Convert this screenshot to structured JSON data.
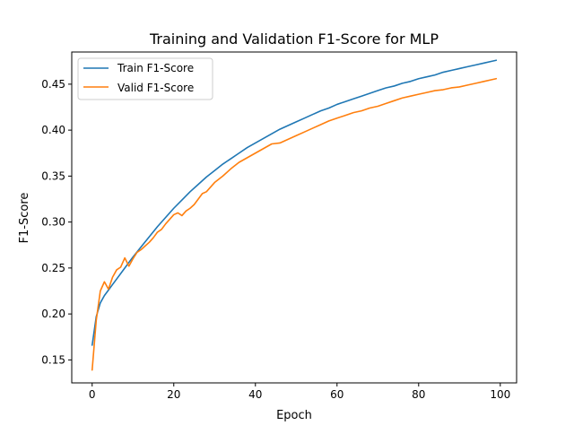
{
  "chart_data": {
    "type": "line",
    "title": "Training and Validation F1-Score for MLP",
    "xlabel": "Epoch",
    "ylabel": "F1-Score",
    "xlim": [
      -5,
      104
    ],
    "ylim": [
      0.125,
      0.485
    ],
    "xticks": [
      0,
      20,
      40,
      60,
      80,
      100
    ],
    "yticks": [
      0.15,
      0.2,
      0.25,
      0.3,
      0.35,
      0.4,
      0.45
    ],
    "xtick_labels": [
      "0",
      "20",
      "40",
      "60",
      "80",
      "100"
    ],
    "ytick_labels": [
      "0.15",
      "0.20",
      "0.25",
      "0.30",
      "0.35",
      "0.40",
      "0.45"
    ],
    "grid": false,
    "legend_position": "upper-left",
    "series": [
      {
        "name": "Train F1-Score",
        "color": "#1f77b4",
        "x": [
          0,
          1,
          2,
          3,
          4,
          5,
          6,
          8,
          10,
          12,
          14,
          16,
          18,
          20,
          22,
          24,
          26,
          28,
          30,
          32,
          34,
          36,
          38,
          40,
          42,
          44,
          46,
          48,
          50,
          52,
          54,
          56,
          58,
          60,
          62,
          64,
          66,
          68,
          70,
          72,
          74,
          76,
          78,
          80,
          82,
          84,
          86,
          88,
          90,
          92,
          94,
          96,
          98,
          99
        ],
        "y": [
          0.166,
          0.197,
          0.212,
          0.22,
          0.226,
          0.232,
          0.238,
          0.25,
          0.262,
          0.273,
          0.284,
          0.295,
          0.305,
          0.315,
          0.324,
          0.333,
          0.341,
          0.349,
          0.356,
          0.363,
          0.369,
          0.375,
          0.381,
          0.386,
          0.391,
          0.396,
          0.401,
          0.405,
          0.409,
          0.413,
          0.417,
          0.421,
          0.424,
          0.428,
          0.431,
          0.434,
          0.437,
          0.44,
          0.443,
          0.446,
          0.448,
          0.451,
          0.453,
          0.456,
          0.458,
          0.46,
          0.463,
          0.465,
          0.467,
          0.469,
          0.471,
          0.473,
          0.475,
          0.476
        ]
      },
      {
        "name": "Valid F1-Score",
        "color": "#ff7f0e",
        "x": [
          0,
          1,
          2,
          3,
          4,
          5,
          6,
          7,
          8,
          9,
          10,
          11,
          12,
          13,
          14,
          15,
          16,
          17,
          18,
          19,
          20,
          21,
          22,
          23,
          24,
          25,
          26,
          27,
          28,
          29,
          30,
          32,
          34,
          36,
          38,
          40,
          42,
          44,
          46,
          48,
          50,
          52,
          54,
          56,
          58,
          60,
          62,
          64,
          66,
          68,
          70,
          72,
          74,
          76,
          78,
          80,
          82,
          84,
          86,
          88,
          90,
          92,
          94,
          96,
          98,
          99
        ],
        "y": [
          0.139,
          0.193,
          0.225,
          0.235,
          0.227,
          0.24,
          0.248,
          0.251,
          0.261,
          0.252,
          0.26,
          0.267,
          0.27,
          0.274,
          0.278,
          0.283,
          0.289,
          0.292,
          0.298,
          0.303,
          0.308,
          0.31,
          0.307,
          0.312,
          0.315,
          0.319,
          0.325,
          0.331,
          0.333,
          0.338,
          0.343,
          0.35,
          0.358,
          0.365,
          0.37,
          0.375,
          0.38,
          0.385,
          0.386,
          0.39,
          0.394,
          0.398,
          0.402,
          0.406,
          0.41,
          0.413,
          0.416,
          0.419,
          0.421,
          0.424,
          0.426,
          0.429,
          0.432,
          0.435,
          0.437,
          0.439,
          0.441,
          0.443,
          0.444,
          0.446,
          0.447,
          0.449,
          0.451,
          0.453,
          0.455,
          0.456
        ]
      }
    ]
  }
}
